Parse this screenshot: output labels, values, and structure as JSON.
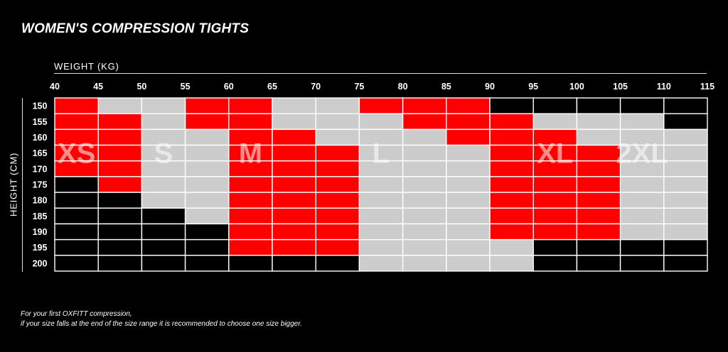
{
  "chart_data": {
    "type": "table",
    "title": "WOMEN'S COMPRESSION TIGHTS",
    "xlabel": "WEIGHT (KG)",
    "ylabel": "HEIGHT (CM)",
    "x_ticks": [
      "40",
      "45",
      "50",
      "55",
      "60",
      "65",
      "70",
      "75",
      "80",
      "85",
      "90",
      "95",
      "100",
      "105",
      "110",
      "115"
    ],
    "y_ticks": [
      "150",
      "155",
      "160",
      "165",
      "170",
      "175",
      "180",
      "185",
      "190",
      "195",
      "200"
    ],
    "size_labels": [
      {
        "text": "XS",
        "col": 0.5,
        "row": 3.5
      },
      {
        "text": "S",
        "col": 2.5,
        "row": 3.5
      },
      {
        "text": "M",
        "col": 4.5,
        "row": 3.5
      },
      {
        "text": "L",
        "col": 7.5,
        "row": 3.5
      },
      {
        "text": "XL",
        "col": 11.5,
        "row": 3.5
      },
      {
        "text": "2XL",
        "col": 13.5,
        "row": 3.5
      }
    ],
    "grid": [
      [
        "R",
        "G",
        "G",
        "R",
        "R",
        "G",
        "G",
        "R",
        "R",
        "R",
        "B",
        "B",
        "B",
        "B",
        "B"
      ],
      [
        "R",
        "R",
        "G",
        "R",
        "R",
        "G",
        "G",
        "G",
        "R",
        "R",
        "R",
        "G",
        "G",
        "G",
        "B"
      ],
      [
        "R",
        "R",
        "G",
        "G",
        "R",
        "R",
        "G",
        "G",
        "G",
        "R",
        "R",
        "R",
        "G",
        "G",
        "G"
      ],
      [
        "R",
        "R",
        "G",
        "G",
        "R",
        "R",
        "R",
        "G",
        "G",
        "G",
        "R",
        "R",
        "R",
        "G",
        "G"
      ],
      [
        "R",
        "R",
        "G",
        "G",
        "R",
        "R",
        "R",
        "G",
        "G",
        "G",
        "R",
        "R",
        "R",
        "G",
        "G"
      ],
      [
        "B",
        "R",
        "G",
        "G",
        "R",
        "R",
        "R",
        "G",
        "G",
        "G",
        "R",
        "R",
        "R",
        "G",
        "G"
      ],
      [
        "B",
        "B",
        "G",
        "G",
        "R",
        "R",
        "R",
        "G",
        "G",
        "G",
        "R",
        "R",
        "R",
        "G",
        "G"
      ],
      [
        "B",
        "B",
        "B",
        "G",
        "R",
        "R",
        "R",
        "G",
        "G",
        "G",
        "R",
        "R",
        "R",
        "G",
        "G"
      ],
      [
        "B",
        "B",
        "B",
        "B",
        "R",
        "R",
        "R",
        "G",
        "G",
        "G",
        "R",
        "R",
        "R",
        "G",
        "G"
      ],
      [
        "B",
        "B",
        "B",
        "B",
        "R",
        "R",
        "R",
        "G",
        "G",
        "G",
        "G",
        "B",
        "B",
        "B",
        "B"
      ],
      [
        "B",
        "B",
        "B",
        "B",
        "B",
        "B",
        "B",
        "G",
        "G",
        "G",
        "G",
        "B",
        "B",
        "B",
        "B"
      ]
    ],
    "colors": {
      "R": "#ff0000",
      "G": "#cccccc",
      "B": "#000000",
      "grid_line": "#ffffff"
    }
  },
  "footnote": {
    "line1": "For your first  OXFITT compression,",
    "line2": "if your size falls at the end of the size range it is recommended to choose one size bigger."
  }
}
